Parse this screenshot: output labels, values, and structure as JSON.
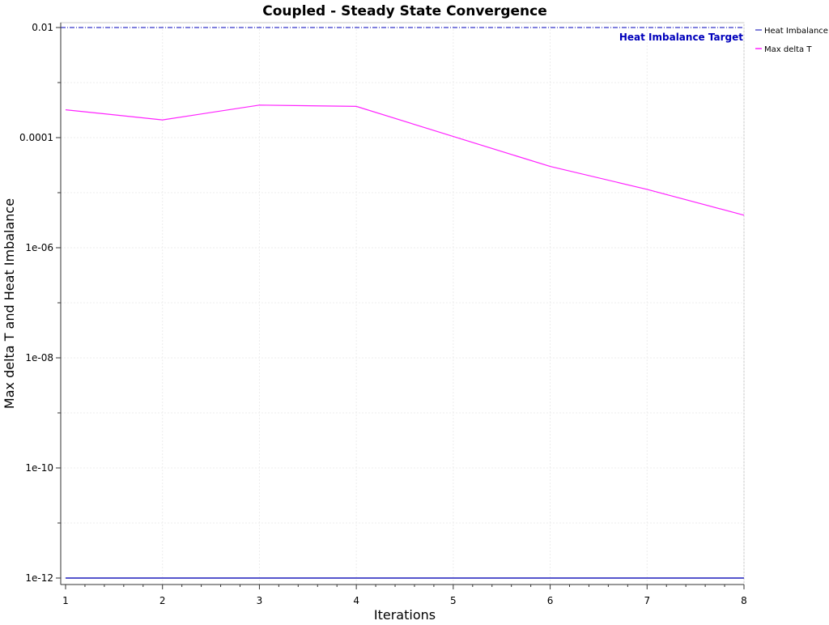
{
  "chart_data": {
    "type": "line",
    "title": "Coupled - Steady State Convergence",
    "xlabel": "Iterations",
    "ylabel": "Max delta T and Heat Imbalance",
    "y_scale": "log",
    "x_ticks": [
      "1",
      "2",
      "3",
      "4",
      "5",
      "6",
      "7",
      "8"
    ],
    "y_ticks": [
      {
        "label": "0.01",
        "value": 0.01
      },
      {
        "label": "0.0001",
        "value": 0.0001
      },
      {
        "label": "1e-06",
        "value": 1e-06
      },
      {
        "label": "1e-08",
        "value": 1e-08
      },
      {
        "label": "1e-10",
        "value": 1e-10
      },
      {
        "label": "1e-12",
        "value": 1e-12
      }
    ],
    "xlim": [
      1,
      8
    ],
    "ylim": [
      1e-12,
      0.01
    ],
    "grid": true,
    "legend_position": "right",
    "x": [
      1,
      2,
      3,
      4,
      5,
      6,
      7,
      8
    ],
    "series": [
      {
        "name": "Heat Imbalance",
        "color": "#5555cc",
        "values": [
          1e-12,
          1e-12,
          1e-12,
          1e-12,
          1e-12,
          1e-12,
          1e-12,
          1e-12
        ]
      },
      {
        "name": "Max delta T",
        "color": "#ff22ff",
        "values": [
          0.00032,
          0.00021,
          0.00039,
          0.00037,
          0.000105,
          3e-05,
          1.15e-05,
          3.9e-06
        ]
      }
    ],
    "annotations": [
      {
        "label": "Heat Imbalance Target",
        "value": 0.01,
        "color": "#0000bb"
      }
    ]
  }
}
